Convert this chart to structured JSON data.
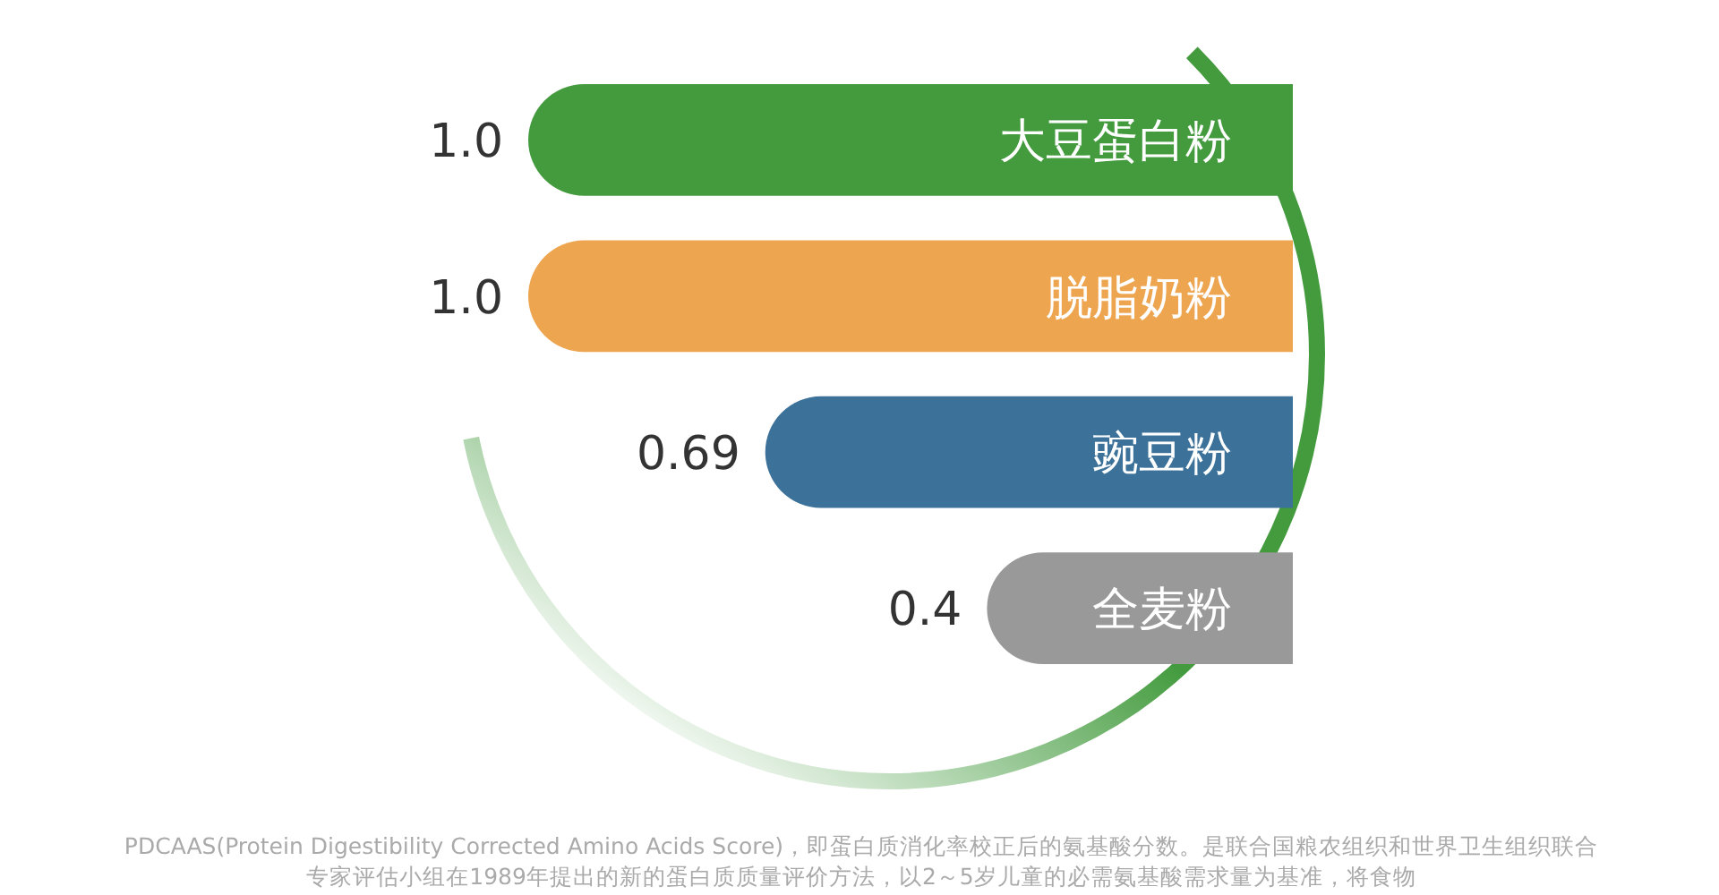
{
  "chart_data": {
    "type": "bar",
    "orientation": "horizontal",
    "categories": [
      "大豆蛋白粉",
      "脱脂奶粉",
      "豌豆粉",
      "全麦粉"
    ],
    "values": [
      1.0,
      1.0,
      0.69,
      0.4
    ],
    "colors": [
      "#439b3e",
      "#eea550",
      "#3c7199",
      "#999999"
    ],
    "value_labels": [
      "1.0",
      "1.0",
      "0.69",
      "0.4"
    ],
    "annotations": [
      "PDCAAS(Protein Digestibility Corrected Amino Acids Score)，即蛋白质消化率校正后的氨基酸分数。是联合国粮农组织和世界卫生组织联合专家评估小组在1989年提出的新的蛋白质质量评价方法，以2～5岁儿童的必需氨基酸需求量为基准，将食物"
    ]
  }
}
